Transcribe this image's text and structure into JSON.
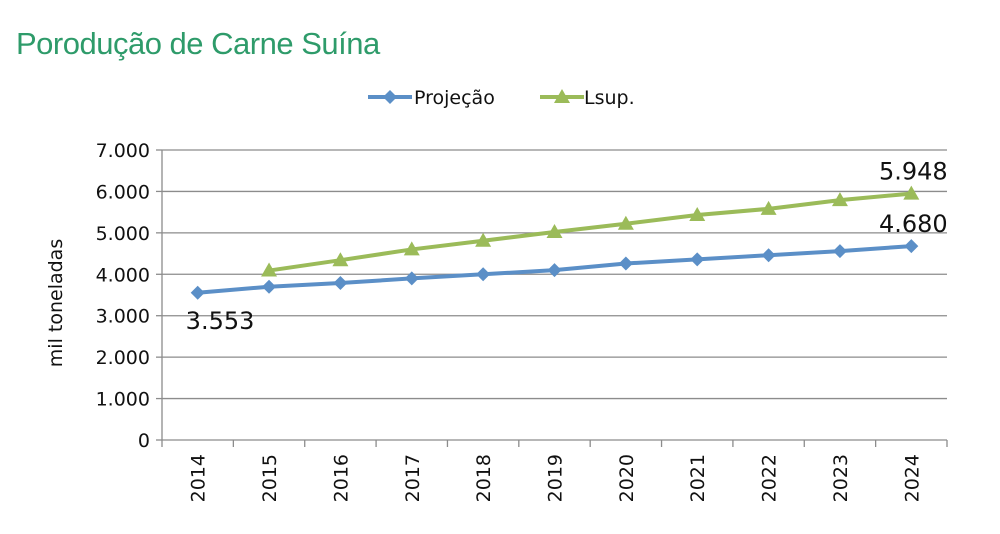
{
  "chart_data": {
    "type": "line",
    "title": "Porodução de Carne Suína",
    "ylabel": "mil toneladas",
    "xlabel": "",
    "categories": [
      "2014",
      "2015",
      "2016",
      "2017",
      "2018",
      "2019",
      "2020",
      "2021",
      "2022",
      "2023",
      "2024"
    ],
    "ylim": [
      0,
      7000
    ],
    "yticks": [
      "0",
      "1.000",
      "2.000",
      "3.000",
      "4.000",
      "5.000",
      "6.000",
      "7.000"
    ],
    "grid": true,
    "legend_position": "top",
    "series": [
      {
        "name": "Projeção",
        "color": "#5b8fc7",
        "marker": "diamond",
        "values": [
          3553,
          3700,
          3790,
          3900,
          4000,
          4100,
          4260,
          4360,
          4460,
          4560,
          4680
        ]
      },
      {
        "name": "Lsup.",
        "color": "#9bbb59",
        "marker": "triangle",
        "values": [
          null,
          4090,
          4340,
          4600,
          4810,
          5020,
          5220,
          5430,
          5580,
          5790,
          5948
        ]
      }
    ],
    "data_labels": [
      {
        "series": 0,
        "index": 0,
        "text": "3.553",
        "pos": "below"
      },
      {
        "series": 0,
        "index": 10,
        "text": "4.680",
        "pos": "above"
      },
      {
        "series": 1,
        "index": 10,
        "text": "5.948",
        "pos": "above"
      }
    ]
  }
}
